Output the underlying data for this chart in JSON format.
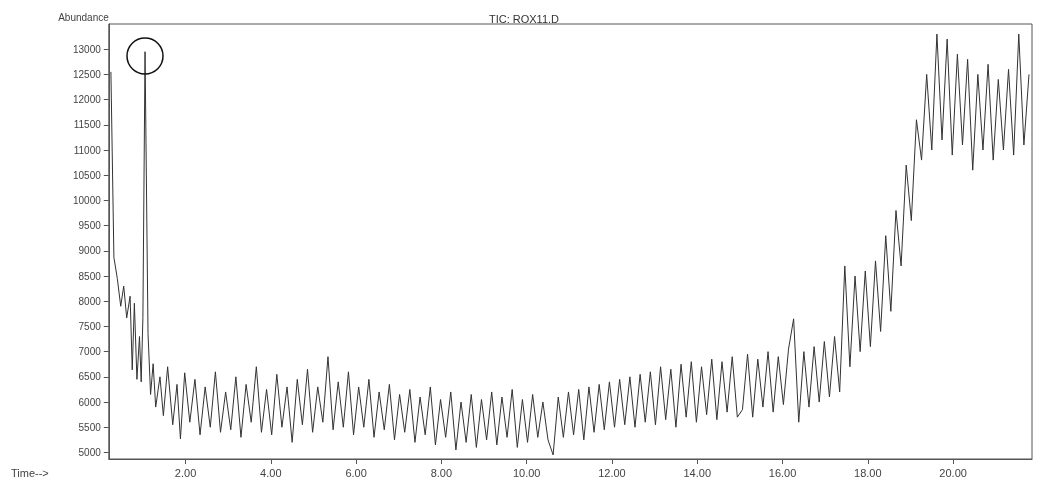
{
  "chart_data": {
    "type": "line",
    "title": "TIC: ROX11.D",
    "xlabel": "Time-->",
    "ylabel": "Abundance",
    "xlim": [
      0.2,
      21.85
    ],
    "ylim": [
      4870,
      13500
    ],
    "xticks": [
      {
        "value": 2,
        "label": "2.00"
      },
      {
        "value": 4,
        "label": "4.00"
      },
      {
        "value": 6,
        "label": "6.00"
      },
      {
        "value": 8,
        "label": "8.00"
      },
      {
        "value": 10,
        "label": "10.00"
      },
      {
        "value": 12,
        "label": "12.00"
      },
      {
        "value": 14,
        "label": "14.00"
      },
      {
        "value": 16,
        "label": "16.00"
      },
      {
        "value": 18,
        "label": "18.00"
      },
      {
        "value": 20,
        "label": "20.00"
      }
    ],
    "yticks": [
      5000,
      5500,
      6000,
      6500,
      7000,
      7500,
      8000,
      8500,
      9000,
      9500,
      10000,
      10500,
      11000,
      11500,
      12000,
      12500,
      13000
    ],
    "grid": false,
    "marker": "none",
    "line_style": "solid",
    "series": [
      {
        "color": "#333333",
        "x": [
          0.25,
          0.32,
          0.4,
          0.48,
          0.55,
          0.62,
          0.7,
          0.75,
          0.8,
          0.86,
          0.92,
          0.96,
          1.0,
          1.05,
          1.12,
          1.18,
          1.24,
          1.3,
          1.4,
          1.48,
          1.58,
          1.7,
          1.8,
          1.88,
          1.98,
          2.1,
          2.22,
          2.34,
          2.46,
          2.58,
          2.7,
          2.82,
          2.94,
          3.06,
          3.18,
          3.3,
          3.42,
          3.54,
          3.66,
          3.78,
          3.9,
          4.02,
          4.14,
          4.26,
          4.38,
          4.5,
          4.62,
          4.74,
          4.86,
          4.98,
          5.1,
          5.22,
          5.34,
          5.46,
          5.58,
          5.7,
          5.82,
          5.94,
          6.06,
          6.18,
          6.3,
          6.42,
          6.54,
          6.66,
          6.78,
          6.9,
          7.02,
          7.14,
          7.26,
          7.38,
          7.5,
          7.62,
          7.74,
          7.86,
          7.98,
          8.1,
          8.22,
          8.34,
          8.46,
          8.58,
          8.7,
          8.82,
          8.94,
          9.06,
          9.18,
          9.3,
          9.42,
          9.54,
          9.66,
          9.78,
          9.9,
          10.02,
          10.14,
          10.26,
          10.38,
          10.5,
          10.62,
          10.74,
          10.86,
          10.98,
          11.1,
          11.22,
          11.34,
          11.46,
          11.58,
          11.7,
          11.82,
          11.94,
          12.06,
          12.18,
          12.3,
          12.42,
          12.54,
          12.66,
          12.78,
          12.9,
          13.02,
          13.14,
          13.26,
          13.38,
          13.5,
          13.62,
          13.74,
          13.86,
          13.98,
          14.1,
          14.22,
          14.34,
          14.46,
          14.58,
          14.7,
          14.82,
          14.94,
          15.06,
          15.18,
          15.3,
          15.42,
          15.54,
          15.66,
          15.78,
          15.9,
          16.02,
          16.14,
          16.26,
          16.38,
          16.5,
          16.62,
          16.74,
          16.86,
          16.98,
          17.1,
          17.22,
          17.34,
          17.46,
          17.58,
          17.7,
          17.82,
          17.94,
          18.06,
          18.18,
          18.3,
          18.42,
          18.54,
          18.66,
          18.78,
          18.9,
          19.02,
          19.14,
          19.26,
          19.38,
          19.5,
          19.62,
          19.74,
          19.86,
          19.98,
          20.1,
          20.22,
          20.34,
          20.46,
          20.58,
          20.7,
          20.82,
          20.94,
          21.06,
          21.18,
          21.3,
          21.42,
          21.54,
          21.66,
          21.78
        ],
        "values": [
          12550,
          8870,
          8450,
          7900,
          8300,
          7670,
          8100,
          6640,
          7960,
          6450,
          7300,
          6400,
          7670,
          12950,
          7360,
          6150,
          6760,
          5900,
          6500,
          5730,
          6700,
          5550,
          6350,
          5270,
          6580,
          5600,
          6450,
          5350,
          6300,
          5500,
          6600,
          5400,
          6200,
          5450,
          6500,
          5300,
          6350,
          5600,
          6700,
          5400,
          6250,
          5350,
          6550,
          5500,
          6300,
          5200,
          6450,
          5550,
          6650,
          5400,
          6300,
          5600,
          6900,
          5450,
          6400,
          5500,
          6600,
          5350,
          6300,
          5500,
          6450,
          5300,
          6200,
          5450,
          6350,
          5250,
          6150,
          5400,
          6250,
          5200,
          6100,
          5350,
          6300,
          5150,
          6050,
          5300,
          6200,
          5050,
          6000,
          5200,
          6150,
          5100,
          6050,
          5250,
          6200,
          5150,
          6100,
          5300,
          6250,
          5100,
          6050,
          5200,
          6150,
          5300,
          6000,
          5250,
          4950,
          6100,
          5300,
          6200,
          5350,
          6250,
          5250,
          6300,
          5400,
          6350,
          5450,
          6400,
          5500,
          6450,
          5550,
          6500,
          5500,
          6550,
          5600,
          6600,
          5550,
          6700,
          5650,
          6650,
          5500,
          6750,
          5700,
          6800,
          5600,
          6700,
          5750,
          6850,
          5650,
          6800,
          5800,
          6900,
          5700,
          5850,
          6950,
          5700,
          6850,
          5900,
          7000,
          5800,
          6900,
          5950,
          7050,
          7650,
          5600,
          7000,
          5900,
          7100,
          6000,
          7200,
          6100,
          7300,
          6200,
          8700,
          6700,
          8500,
          7000,
          8600,
          7100,
          8800,
          7400,
          9300,
          7800,
          9800,
          8700,
          10700,
          9600,
          11600,
          10800,
          12500,
          11000,
          13300,
          11200,
          13200,
          10900,
          12900,
          11100,
          12800,
          10600,
          12500,
          11000,
          12700,
          10800,
          12400,
          11000,
          12600,
          10900,
          13300,
          11100,
          12500
        ]
      }
    ]
  }
}
